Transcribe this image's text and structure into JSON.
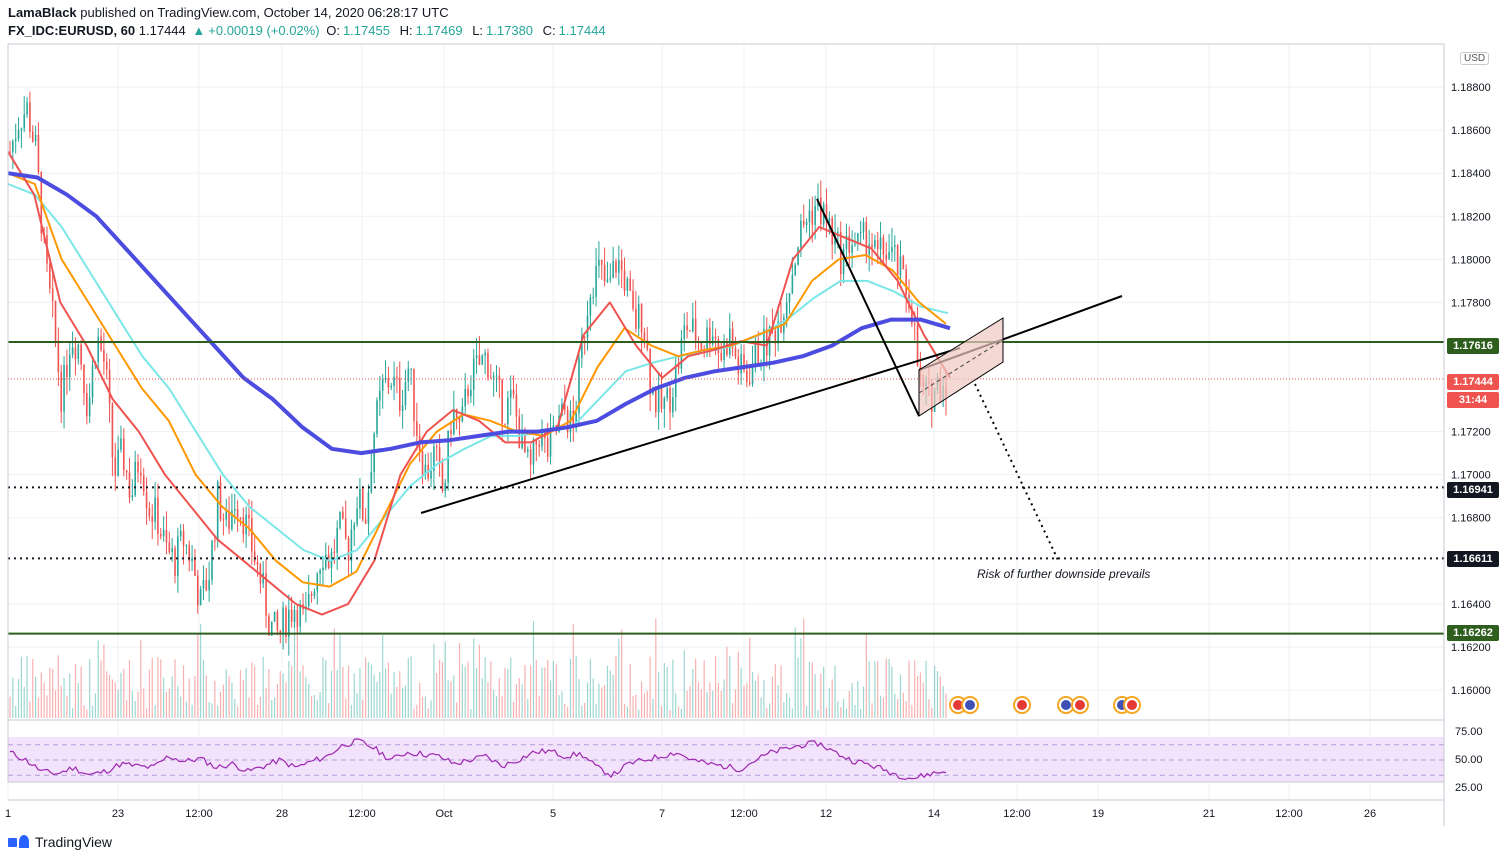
{
  "header": {
    "author": "LamaBlack",
    "published": "published on TradingView.com, October 14, 2020 06:28:17 UTC",
    "symbol": "FX_IDC:EURUSD, 60",
    "last": "1.17444",
    "change": "+0.00019 (+0.02%)",
    "o_label": "O:",
    "o_value": "1.17455",
    "h_label": "H:",
    "h_value": "1.17469",
    "l_label": "L:",
    "l_value": "1.17380",
    "c_label": "C:",
    "c_value": "1.17444"
  },
  "currency_badge": "USD",
  "annotation": "Risk of further downside prevails",
  "countdown": "31:44",
  "footer": {
    "brand": "TradingView"
  },
  "colors": {
    "up": "#26a69a",
    "down": "#ef5350",
    "ema_red": "#ef5350",
    "ema_orange": "#ff9800",
    "ema_cyan": "#7be6e8",
    "ema_blue": "#4c4ce0",
    "level_line": "#2e5e1e",
    "rsi": "#9c27b0",
    "rsi_band": "#f3e2fb"
  },
  "chart_data": {
    "type": "candlestick",
    "symbol": "FX_IDC:EURUSD",
    "timeframe": "60",
    "ylim": [
      1.1587,
      1.19
    ],
    "y_ticks": [
      "1.18800",
      "1.18600",
      "1.18400",
      "1.18200",
      "1.18000",
      "1.17800",
      "1.17200",
      "1.17000",
      "1.16800",
      "1.16400",
      "1.16200",
      "1.16000"
    ],
    "x_ticks": [
      "1",
      "23",
      "12:00",
      "28",
      "12:00",
      "Oct",
      "5",
      "7",
      "12:00",
      "12",
      "14",
      "12:00",
      "19",
      "21",
      "12:00",
      "26"
    ],
    "price_levels": [
      {
        "value": "1.17616",
        "style": "solid"
      },
      {
        "value": "1.16941",
        "style": "dotted"
      },
      {
        "value": "1.16611",
        "style": "dotted"
      },
      {
        "value": "1.16262",
        "style": "solid"
      }
    ],
    "last_price": "1.17444",
    "close_path": [
      1.185,
      1.1865,
      1.187,
      1.185,
      1.18,
      1.177,
      1.1735,
      1.1765,
      1.176,
      1.173,
      1.1765,
      1.175,
      1.17,
      1.171,
      1.169,
      1.171,
      1.1685,
      1.168,
      1.1665,
      1.166,
      1.167,
      1.166,
      1.164,
      1.1655,
      1.169,
      1.1675,
      1.169,
      1.168,
      1.1665,
      1.165,
      1.163,
      1.1625,
      1.1635,
      1.164,
      1.163,
      1.165,
      1.1665,
      1.166,
      1.1675,
      1.1665,
      1.169,
      1.168,
      1.172,
      1.174,
      1.1745,
      1.1735,
      1.175,
      1.172,
      1.17,
      1.171,
      1.169,
      1.173,
      1.172,
      1.1745,
      1.175,
      1.1755,
      1.174,
      1.173,
      1.1735,
      1.1715,
      1.17,
      1.172,
      1.171,
      1.172,
      1.173,
      1.172,
      1.176,
      1.179,
      1.1795,
      1.1785,
      1.18,
      1.179,
      1.177,
      1.1775,
      1.174,
      1.173,
      1.1735,
      1.175,
      1.177,
      1.1765,
      1.176,
      1.177,
      1.1755,
      1.1765,
      1.175,
      1.1745,
      1.1755,
      1.176,
      1.1765,
      1.1775,
      1.179,
      1.181,
      1.182,
      1.1825,
      1.182,
      1.181,
      1.18,
      1.181,
      1.1805,
      1.1812,
      1.18,
      1.1805,
      1.18,
      1.179,
      1.178,
      1.174,
      1.1735,
      1.1742,
      1.1744
    ],
    "ema_red": [
      1.185,
      1.183,
      1.178,
      1.176,
      1.1735,
      1.172,
      1.17,
      1.1685,
      1.167,
      1.166,
      1.165,
      1.164,
      1.1635,
      1.164,
      1.166,
      1.17,
      1.172,
      1.173,
      1.1725,
      1.1715,
      1.1715,
      1.1722,
      1.1765,
      1.178,
      1.176,
      1.1745,
      1.1755,
      1.1758,
      1.1762,
      1.176,
      1.18,
      1.1815,
      1.181,
      1.1805,
      1.179,
      1.1765,
      1.1745
    ],
    "ema_orange": [
      1.184,
      1.1835,
      1.18,
      1.178,
      1.176,
      1.174,
      1.1725,
      1.17,
      1.1685,
      1.1675,
      1.166,
      1.165,
      1.1648,
      1.1655,
      1.168,
      1.1705,
      1.172,
      1.1728,
      1.1725,
      1.172,
      1.1718,
      1.1725,
      1.175,
      1.1768,
      1.176,
      1.1755,
      1.1758,
      1.176,
      1.1765,
      1.177,
      1.179,
      1.18,
      1.1802,
      1.1795,
      1.178,
      1.177
    ],
    "ema_cyan": [
      1.1835,
      1.183,
      1.1815,
      1.1795,
      1.1775,
      1.1755,
      1.174,
      1.172,
      1.17,
      1.1685,
      1.1675,
      1.1665,
      1.166,
      1.1665,
      1.168,
      1.1695,
      1.1705,
      1.1712,
      1.1718,
      1.1718,
      1.172,
      1.1722,
      1.1735,
      1.1748,
      1.1752,
      1.1755,
      1.1757,
      1.176,
      1.1765,
      1.1772,
      1.1782,
      1.179,
      1.179,
      1.1785,
      1.1778,
      1.1775
    ],
    "ema_blue": [
      1.184,
      1.1838,
      1.183,
      1.182,
      1.1805,
      1.179,
      1.1775,
      1.176,
      1.1745,
      1.1735,
      1.1722,
      1.1712,
      1.171,
      1.1712,
      1.1715,
      1.1716,
      1.1718,
      1.172,
      1.172,
      1.1722,
      1.1725,
      1.1733,
      1.174,
      1.1745,
      1.1748,
      1.175,
      1.1752,
      1.1755,
      1.176,
      1.1768,
      1.1772,
      1.1772,
      1.1768
    ],
    "rsi": {
      "ticks": [
        "75.00",
        "50.00",
        "25.00"
      ],
      "band": [
        30,
        70
      ]
    }
  }
}
